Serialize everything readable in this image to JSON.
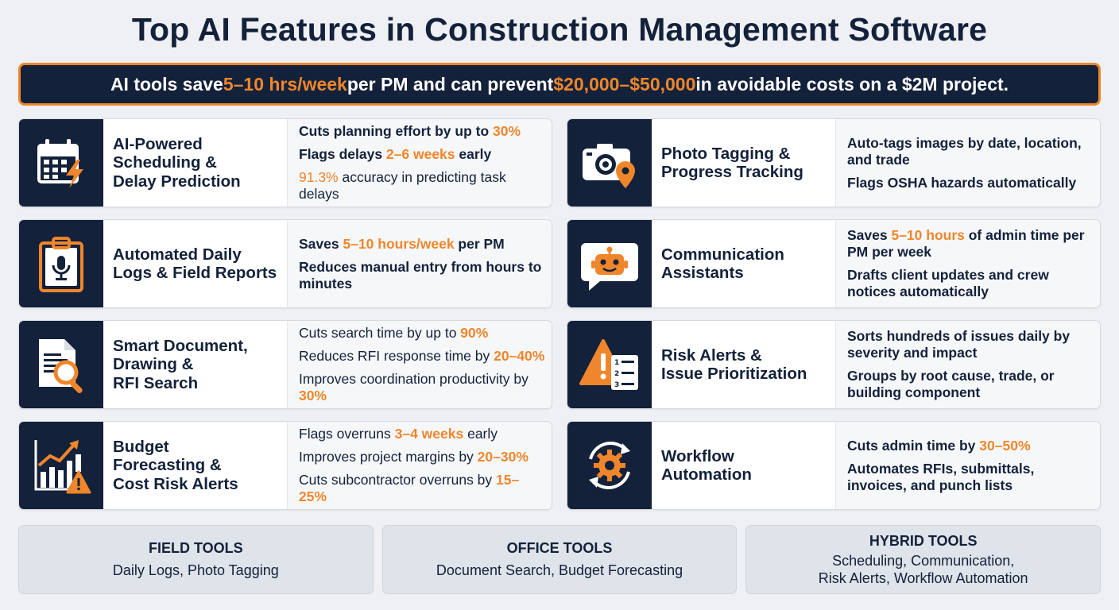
{
  "title": "Top AI Features in Construction Management Software",
  "banner": {
    "t1": "AI tools save ",
    "h1": "5–10 hrs/week",
    "t2": " per PM and can prevent ",
    "h2": "$20,000–$50,000",
    "t3": " in avoidable costs on a $2M project."
  },
  "colors": {
    "navy": "#13213a",
    "accent": "#f0862b",
    "card_bg": "#ffffff",
    "page_bg": "#eef0f4"
  },
  "cards": [
    {
      "icon": "calendar-lightning-icon",
      "name": "AI-Powered\nScheduling &\nDelay Prediction",
      "facts": [
        {
          "a": "Cuts planning effort by up to ",
          "h": "30%",
          "b": ""
        },
        {
          "a": "Flags delays ",
          "h": "2–6 weeks",
          "b": " early"
        },
        {
          "a": "",
          "h": "91.3%",
          "b": " accuracy in predicting task delays"
        }
      ]
    },
    {
      "icon": "camera-location-icon",
      "name": "Photo Tagging &\nProgress Tracking",
      "facts": [
        {
          "a": "Auto-tags images by date, location, and trade",
          "h": "",
          "b": ""
        },
        {
          "a": "Flags OSHA hazards automatically",
          "h": "",
          "b": ""
        }
      ]
    },
    {
      "icon": "clipboard-microphone-icon",
      "name": "Automated Daily\nLogs & Field Reports",
      "facts": [
        {
          "a": "Saves ",
          "h": "5–10 hours/week",
          "b": " per PM"
        },
        {
          "a": "Reduces manual entry from hours to minutes",
          "h": "",
          "b": ""
        }
      ]
    },
    {
      "icon": "chat-robot-icon",
      "name": "Communication\nAssistants",
      "facts": [
        {
          "a": "Saves ",
          "h": "5–10 hours",
          "b": " of admin time per PM per week"
        },
        {
          "a": "Drafts client updates and crew notices automatically",
          "h": "",
          "b": ""
        }
      ]
    },
    {
      "icon": "document-search-icon",
      "name": "Smart Document,\nDrawing &\nRFI Search",
      "facts": [
        {
          "a": "Cuts search time by up to ",
          "h": "90%",
          "b": ""
        },
        {
          "a": "Reduces RFI response time by ",
          "h": "20–40%",
          "b": ""
        },
        {
          "a": "Improves coordination productivity by ",
          "h": "30%",
          "b": ""
        }
      ]
    },
    {
      "icon": "warning-checklist-icon",
      "name": "Risk Alerts &\nIssue Prioritization",
      "facts": [
        {
          "a": "Sorts hundreds of issues daily by severity and impact",
          "h": "",
          "b": ""
        },
        {
          "a": "Groups by root cause, trade, or building component",
          "h": "",
          "b": ""
        }
      ]
    },
    {
      "icon": "chart-warning-icon",
      "name": "Budget\nForecasting &\nCost Risk Alerts",
      "facts": [
        {
          "a": "Flags overruns ",
          "h": "3–4 weeks",
          "b": " early"
        },
        {
          "a": "Improves project margins by ",
          "h": "20–30%",
          "b": ""
        },
        {
          "a": "Cuts subcontractor overruns by ",
          "h": "15–25%",
          "b": ""
        }
      ]
    },
    {
      "icon": "gear-cycle-icon",
      "name": "Workflow\nAutomation",
      "facts": [
        {
          "a": "Cuts admin time by ",
          "h": "30–50%",
          "b": ""
        },
        {
          "a": "Automates RFIs, submittals, invoices, and punch lists",
          "h": "",
          "b": ""
        }
      ]
    }
  ],
  "tools": [
    {
      "head": "FIELD TOOLS",
      "body": "Daily Logs, Photo Tagging"
    },
    {
      "head": "OFFICE TOOLS",
      "body": "Document Search, Budget Forecasting"
    },
    {
      "head": "HYBRID TOOLS",
      "body": "Scheduling, Communication,\nRisk Alerts, Workflow Automation"
    }
  ]
}
